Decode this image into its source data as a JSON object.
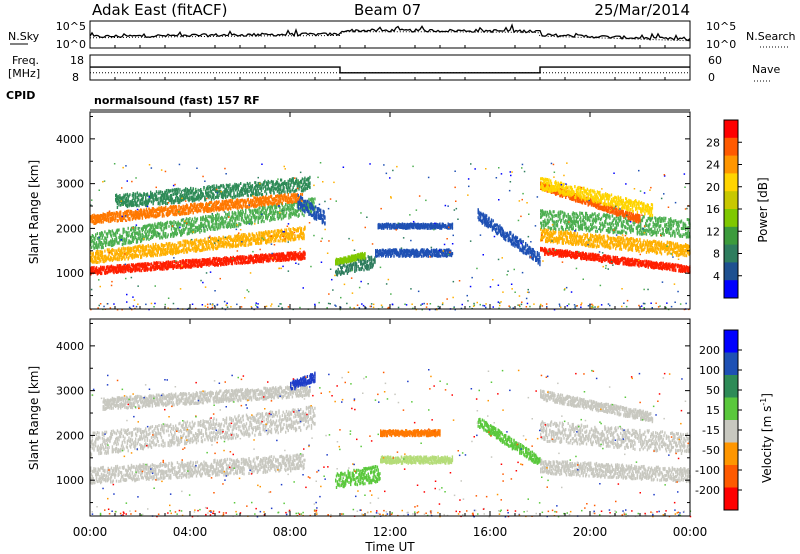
{
  "header": {
    "station": "Adak East (fitACF)",
    "beam": "Beam 07",
    "date": "25/Mar/2014"
  },
  "chart_data": [
    {
      "type": "line",
      "name": "noise-panel",
      "left_label": "N.Sky",
      "right_label": "N.Search",
      "left_ticks": [
        "10^5",
        "10^0"
      ],
      "right_ticks": [
        "10^5",
        "10^0"
      ],
      "x_range_hours": [
        0,
        24
      ]
    },
    {
      "type": "line",
      "name": "frequency-nave-panel",
      "left_label_1": "Freq.",
      "left_label_2": "[MHz]",
      "right_label": "Nave",
      "left_ticks": [
        18,
        8
      ],
      "right_ticks": [
        60,
        0
      ],
      "freq_steps": [
        {
          "from_h": 0,
          "to_h": 10,
          "value": 13.2
        },
        {
          "from_h": 10,
          "to_h": 18,
          "value": 10.5
        },
        {
          "from_h": 18,
          "to_h": 24,
          "value": 13.2
        }
      ],
      "nave_steps": [
        {
          "from_h": 0,
          "to_h": 24,
          "value": 15
        }
      ]
    },
    {
      "type": "table",
      "name": "cpid-row",
      "label": "CPID",
      "text": "normalsound (fast) 157 RF"
    },
    {
      "type": "heatmap",
      "name": "power-panel",
      "ylabel": "Slant Range [km]",
      "ylim": [
        200,
        4600
      ],
      "yticks": [
        1000,
        2000,
        3000,
        4000
      ],
      "x_range_hours": [
        0,
        24
      ],
      "colorbar": {
        "label": "Power [dB]",
        "ticks": [
          "28",
          "24",
          "20",
          "16",
          "12",
          "8",
          "4"
        ],
        "colors": [
          "#ff0000",
          "#ff5a00",
          "#ff9600",
          "#ffd400",
          "#c8c800",
          "#7fc800",
          "#3c9b3c",
          "#2e7d5e",
          "#1e5090",
          "#0000ff"
        ]
      },
      "bands": [
        {
          "from_h": 0.0,
          "to_h": 8.6,
          "center_start": 1050,
          "center_end": 1400,
          "width": 160,
          "color": "#ff1e00"
        },
        {
          "from_h": 0.0,
          "to_h": 8.6,
          "center_start": 1350,
          "center_end": 1900,
          "width": 260,
          "color": "#ffb000"
        },
        {
          "from_h": 0.0,
          "to_h": 9.0,
          "center_start": 1700,
          "center_end": 2500,
          "width": 350,
          "color": "#4caf50"
        },
        {
          "from_h": 0.0,
          "to_h": 8.5,
          "center_start": 2200,
          "center_end": 2700,
          "width": 200,
          "color": "#ff7800"
        },
        {
          "from_h": 1.0,
          "to_h": 8.8,
          "center_start": 2600,
          "center_end": 3000,
          "width": 300,
          "color": "#2e8b57"
        },
        {
          "from_h": 8.3,
          "to_h": 9.4,
          "center_start": 2600,
          "center_end": 2200,
          "width": 300,
          "color": "#1e50b4"
        },
        {
          "from_h": 9.8,
          "to_h": 11.4,
          "center_start": 1100,
          "center_end": 1250,
          "width": 300,
          "color": "#2e7d5e"
        },
        {
          "from_h": 9.8,
          "to_h": 11.0,
          "center_start": 1250,
          "center_end": 1400,
          "width": 120,
          "color": "#7fc800"
        },
        {
          "from_h": 11.4,
          "to_h": 14.5,
          "center_start": 1450,
          "center_end": 1450,
          "width": 150,
          "color": "#1e50b4"
        },
        {
          "from_h": 11.5,
          "to_h": 14.5,
          "center_start": 2050,
          "center_end": 2050,
          "width": 100,
          "color": "#1e50b4"
        },
        {
          "from_h": 15.5,
          "to_h": 18.0,
          "center_start": 2300,
          "center_end": 1300,
          "width": 250,
          "color": "#1e50b4"
        },
        {
          "from_h": 18.0,
          "to_h": 24.0,
          "center_start": 1500,
          "center_end": 1080,
          "width": 140,
          "color": "#ff1e00"
        },
        {
          "from_h": 18.0,
          "to_h": 24.0,
          "center_start": 1850,
          "center_end": 1500,
          "width": 280,
          "color": "#ffb000"
        },
        {
          "from_h": 18.0,
          "to_h": 24.0,
          "center_start": 2200,
          "center_end": 2000,
          "width": 400,
          "color": "#4caf50"
        },
        {
          "from_h": 18.0,
          "to_h": 22.0,
          "center_start": 2950,
          "center_end": 2200,
          "width": 160,
          "color": "#ff5a00"
        },
        {
          "from_h": 18.0,
          "to_h": 22.5,
          "center_start": 3000,
          "center_end": 2400,
          "width": 260,
          "color": "#ffd400"
        }
      ]
    },
    {
      "type": "heatmap",
      "name": "velocity-panel",
      "ylabel": "Slant Range [km]",
      "ylim": [
        200,
        4600
      ],
      "yticks": [
        1000,
        2000,
        3000,
        4000
      ],
      "xlabel": "Time UT",
      "xticks": [
        "00:00",
        "04:00",
        "08:00",
        "12:00",
        "16:00",
        "20:00",
        "00:00"
      ],
      "x_range_hours": [
        0,
        24
      ],
      "colorbar": {
        "label": "Velocity [m s",
        "label_sup": "-1",
        "label_end": "]",
        "ticks": [
          "200",
          "100",
          "50",
          "15",
          "-15",
          "-50",
          "-100",
          "-200"
        ],
        "colors": [
          "#0000ff",
          "#1e50b4",
          "#2e8b57",
          "#5ac83c",
          "#c8c8c0",
          "#ff9600",
          "#ff5a00",
          "#ff0000"
        ]
      },
      "bands": [
        {
          "from_h": 0.0,
          "to_h": 8.6,
          "center_start": 1100,
          "center_end": 1400,
          "width": 350,
          "color": "#c8c8c0"
        },
        {
          "from_h": 0.0,
          "to_h": 9.0,
          "center_start": 1800,
          "center_end": 2400,
          "width": 500,
          "color": "#c8c8c0"
        },
        {
          "from_h": 0.5,
          "to_h": 8.8,
          "center_start": 2700,
          "center_end": 3000,
          "width": 250,
          "color": "#c8c8c0"
        },
        {
          "from_h": 8.0,
          "to_h": 9.0,
          "center_start": 3100,
          "center_end": 3300,
          "width": 200,
          "color": "#1e3cc8"
        },
        {
          "from_h": 9.8,
          "to_h": 11.6,
          "center_start": 1000,
          "center_end": 1150,
          "width": 350,
          "color": "#5ac83c"
        },
        {
          "from_h": 11.6,
          "to_h": 14.5,
          "center_start": 1450,
          "center_end": 1450,
          "width": 150,
          "color": "#b4dc78"
        },
        {
          "from_h": 11.6,
          "to_h": 14.0,
          "center_start": 2050,
          "center_end": 2050,
          "width": 120,
          "color": "#ff7800"
        },
        {
          "from_h": 15.5,
          "to_h": 18.0,
          "center_start": 2300,
          "center_end": 1400,
          "width": 220,
          "color": "#5ac83c"
        },
        {
          "from_h": 18.0,
          "to_h": 24.0,
          "center_start": 1300,
          "center_end": 1100,
          "width": 300,
          "color": "#c8c8c0"
        },
        {
          "from_h": 18.0,
          "to_h": 24.0,
          "center_start": 2100,
          "center_end": 1800,
          "width": 450,
          "color": "#c8c8c0"
        },
        {
          "from_h": 18.0,
          "to_h": 22.5,
          "center_start": 2900,
          "center_end": 2400,
          "width": 200,
          "color": "#c8c8c0"
        }
      ]
    }
  ]
}
